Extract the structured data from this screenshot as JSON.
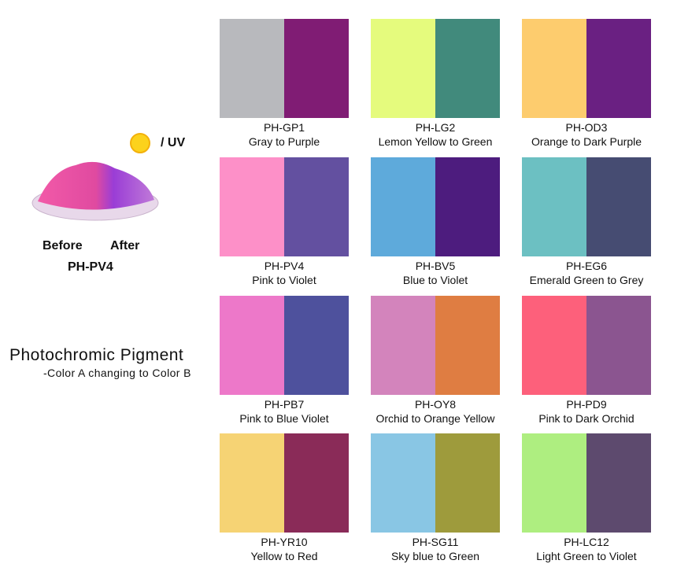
{
  "legend": {
    "uv": "/ UV",
    "before": "Before",
    "after": "After",
    "sample": "PH-PV4"
  },
  "heading": {
    "title": "Photochromic Pigment",
    "subtitle": "-Color A changing to Color B"
  },
  "swatches": [
    {
      "code": "PH-GP1",
      "name": "Gray to Purple",
      "colors": [
        "#b8b9bd",
        "#801c74"
      ]
    },
    {
      "code": "PH-LG2",
      "name": "Lemon Yellow to Green",
      "colors": [
        "#e5fb7d",
        "#418a7c"
      ]
    },
    {
      "code": "PH-OD3",
      "name": "Orange to Dark Purple",
      "colors": [
        "#fdcc6e",
        "#6a2082"
      ]
    },
    {
      "code": "PH-PV4",
      "name": "Pink to Violet",
      "colors": [
        "#fd90c8",
        "#6350a0"
      ]
    },
    {
      "code": "PH-BV5",
      "name": "Blue to Violet",
      "colors": [
        "#5eaadb",
        "#4d1c7e"
      ]
    },
    {
      "code": "PH-EG6",
      "name": "Emerald Green to Grey",
      "colors": [
        "#6cc0c2",
        "#464c72"
      ]
    },
    {
      "code": "PH-PB7",
      "name": "Pink to Blue Violet",
      "colors": [
        "#ed78c9",
        "#4e519d"
      ]
    },
    {
      "code": "PH-OY8",
      "name": "Orchid to Orange Yellow",
      "colors": [
        "#d384bc",
        "#df7d42"
      ]
    },
    {
      "code": "PH-PD9",
      "name": "Pink to Dark Orchid",
      "colors": [
        "#fd607b",
        "#8b5590"
      ]
    },
    {
      "code": "PH-YR10",
      "name": "Yellow to Red",
      "colors": [
        "#f6d374",
        "#8a2b58"
      ]
    },
    {
      "code": "PH-SG11",
      "name": "Sky blue to Green",
      "colors": [
        "#89c6e4",
        "#9e9b3c"
      ]
    },
    {
      "code": "PH-LC12",
      "name": "Light Green to Violet",
      "colors": [
        "#aeee80",
        "#5d4a6e"
      ]
    }
  ]
}
